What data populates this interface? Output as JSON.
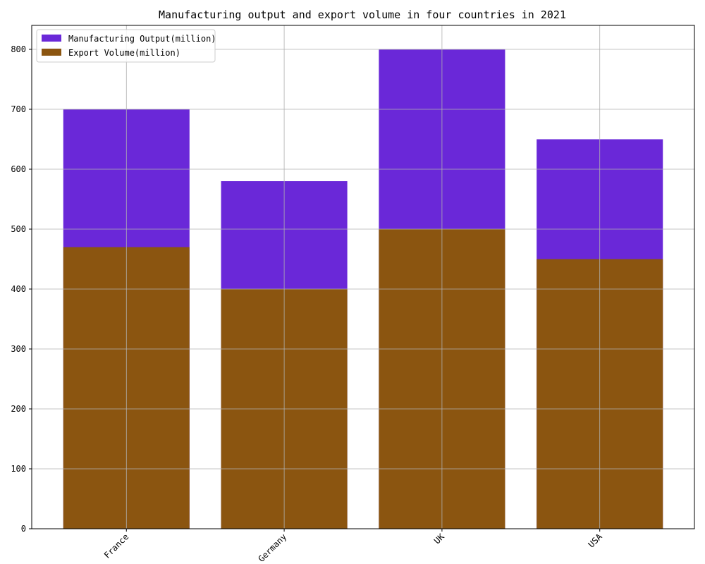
{
  "chart_data": {
    "type": "bar",
    "stacking": "overlay",
    "title": "Manufacturing output and export volume in four countries in 2021",
    "xlabel": "",
    "ylabel": "",
    "categories": [
      "France",
      "Germany",
      "UK",
      "USA"
    ],
    "series": [
      {
        "name": "Manufacturing Output(million)",
        "values": [
          700,
          580,
          800,
          650
        ],
        "color": "#6a28d8"
      },
      {
        "name": "Export Volume(million)",
        "values": [
          470,
          400,
          500,
          450
        ],
        "color": "#8b5510"
      }
    ],
    "ylim": [
      0,
      840
    ],
    "yticks": [
      0,
      100,
      200,
      300,
      400,
      500,
      600,
      700,
      800
    ],
    "grid": true,
    "legend_position": "top-left",
    "x_tick_rotation": 45
  }
}
